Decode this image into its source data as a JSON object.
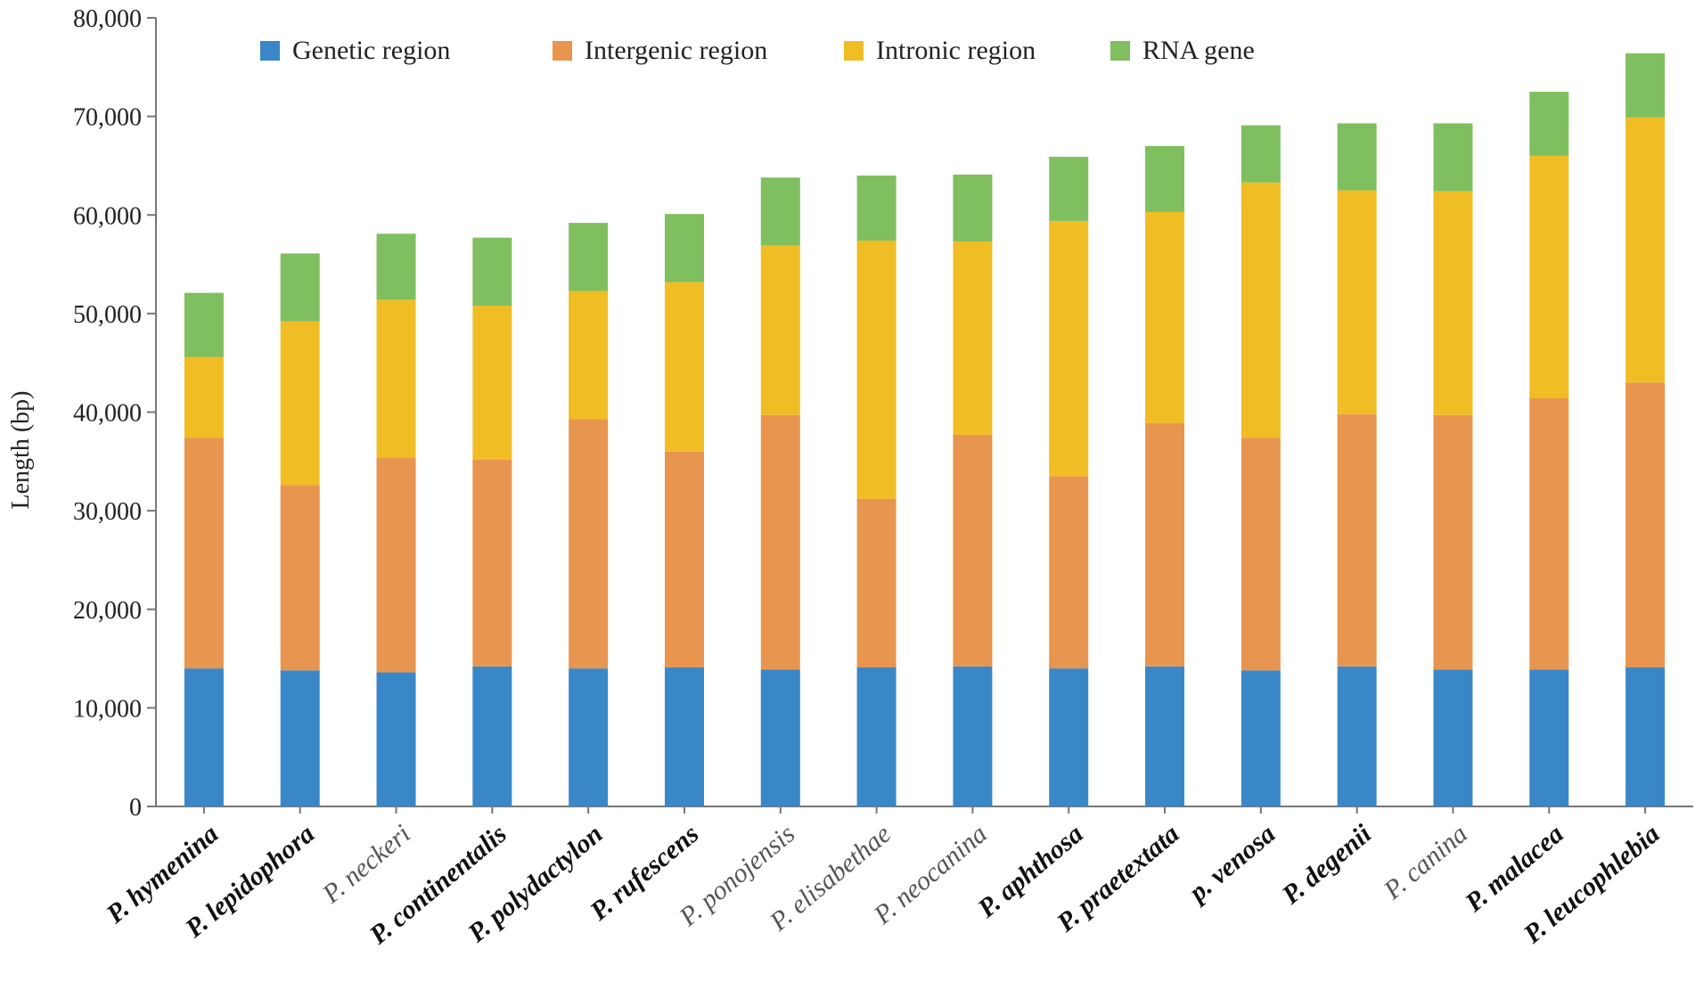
{
  "chart_data": {
    "type": "bar",
    "stacked": true,
    "title": "",
    "xlabel": "",
    "ylabel": "Length (bp)",
    "ylim": [
      0,
      80000
    ],
    "yticks": [
      0,
      10000,
      20000,
      30000,
      40000,
      50000,
      60000,
      70000,
      80000
    ],
    "ytick_labels": [
      "0",
      "10,000",
      "20,000",
      "30,000",
      "40,000",
      "50,000",
      "60,000",
      "70,000",
      "80,000"
    ],
    "grid": false,
    "legend_position": "top",
    "categories": [
      "P. hymenina",
      "P. lepidophora",
      "P. neckeri",
      "P. continentalis",
      "P. polydactylon",
      "P. rufescens",
      "P. ponojensis",
      "P. elisabethae",
      "P. neocanina",
      "P. aphthosa",
      "P. praetextata",
      "p. venosa",
      "P. degenii",
      "P. canina",
      "P. malacea",
      "P. leucophlebia"
    ],
    "category_bold": [
      true,
      true,
      false,
      true,
      true,
      true,
      false,
      false,
      false,
      true,
      true,
      true,
      true,
      false,
      true,
      true
    ],
    "series": [
      {
        "name": "Genetic region",
        "color": "#3a87c8",
        "values": [
          14000,
          13800,
          13600,
          14200,
          14000,
          14100,
          13900,
          14100,
          14200,
          14000,
          14200,
          13800,
          14200,
          13900,
          13900,
          14100
        ]
      },
      {
        "name": "Intergenic region",
        "color": "#e8954f",
        "values": [
          23400,
          18800,
          21800,
          21000,
          25300,
          21900,
          25800,
          17100,
          23500,
          19500,
          24700,
          23600,
          25600,
          25800,
          27500,
          28900
        ]
      },
      {
        "name": "Intronic region",
        "color": "#f0bd25",
        "values": [
          8200,
          16600,
          16000,
          15600,
          13000,
          17200,
          17200,
          26200,
          19600,
          25900,
          21400,
          25900,
          22700,
          22700,
          24600,
          26900
        ]
      },
      {
        "name": "RNA gene",
        "color": "#7fbf5f",
        "values": [
          6500,
          6900,
          6700,
          6900,
          6900,
          6900,
          6900,
          6600,
          6800,
          6500,
          6700,
          5800,
          6800,
          6900,
          6500,
          6500
        ]
      }
    ]
  }
}
